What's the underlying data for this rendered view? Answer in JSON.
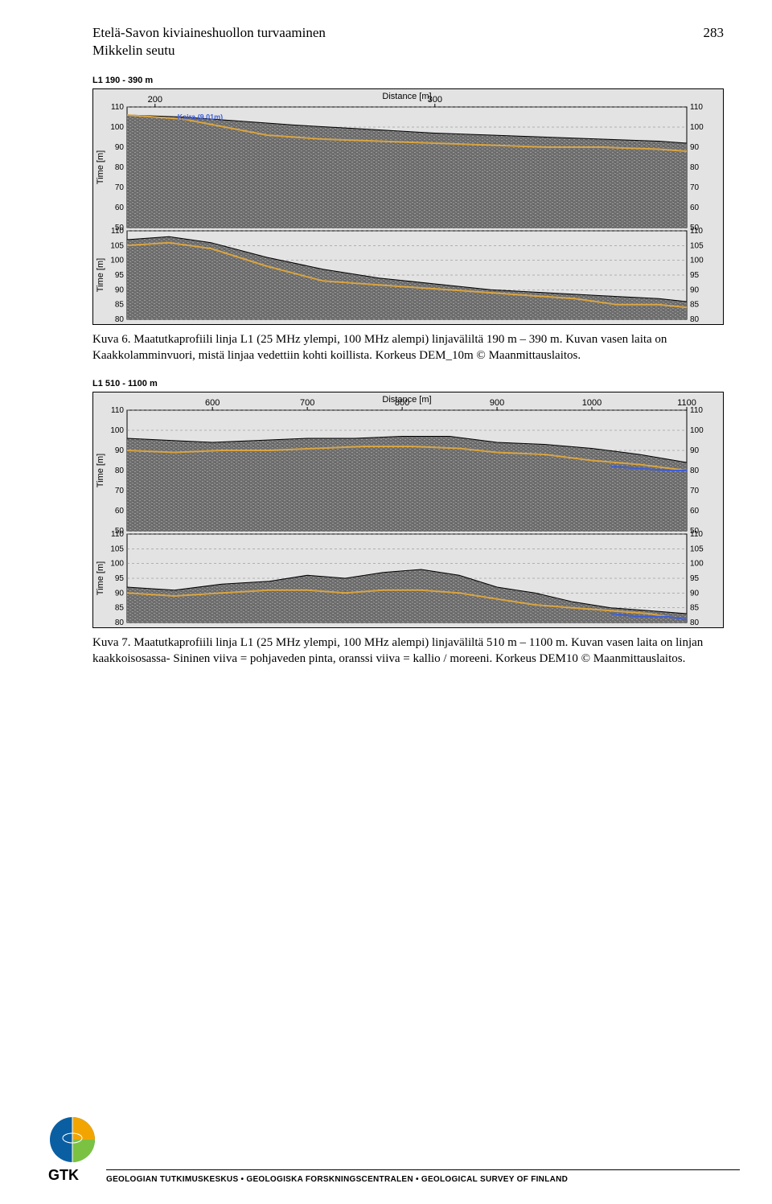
{
  "header": {
    "line1": "Etelä-Savon kiviaineshuollon turvaaminen",
    "line2": "Mikkelin seutu",
    "page_number": "283"
  },
  "profile1": {
    "label": "L1 190 - 390 m",
    "distance_label": "Distance [m]",
    "time_label_upper": "Time [m]",
    "time_label_lower": "Time [m]",
    "x_ticks": [
      200,
      300
    ],
    "x_range": [
      190,
      390
    ],
    "upper": {
      "y_ticks": [
        110,
        100,
        90,
        80,
        70,
        60,
        50
      ],
      "y_range": [
        50,
        110
      ],
      "surface": [
        [
          190,
          106
        ],
        [
          210,
          105
        ],
        [
          250,
          101
        ],
        [
          300,
          97
        ],
        [
          340,
          95
        ],
        [
          380,
          93
        ],
        [
          390,
          92
        ]
      ],
      "layer_orange": [
        [
          190,
          106
        ],
        [
          210,
          104
        ],
        [
          225,
          100
        ],
        [
          240,
          96
        ],
        [
          260,
          94
        ],
        [
          280,
          93
        ],
        [
          300,
          92
        ],
        [
          320,
          91
        ],
        [
          340,
          90
        ],
        [
          360,
          90
        ],
        [
          380,
          89
        ],
        [
          390,
          88
        ]
      ],
      "kaira_label": "Kaira (9.01m)",
      "kaira_pos": [
        208,
        103
      ]
    },
    "lower": {
      "y_ticks": [
        110,
        105,
        100,
        95,
        90,
        85,
        80
      ],
      "y_range": [
        80,
        110
      ],
      "surface": [
        [
          190,
          107
        ],
        [
          205,
          108
        ],
        [
          220,
          106
        ],
        [
          240,
          101
        ],
        [
          260,
          97
        ],
        [
          280,
          94
        ],
        [
          300,
          92
        ],
        [
          320,
          90
        ],
        [
          340,
          89
        ],
        [
          360,
          88
        ],
        [
          380,
          87
        ],
        [
          390,
          86
        ]
      ],
      "layer_orange": [
        [
          190,
          105
        ],
        [
          205,
          106
        ],
        [
          220,
          104
        ],
        [
          240,
          98
        ],
        [
          260,
          93
        ],
        [
          275,
          92
        ],
        [
          290,
          91
        ],
        [
          305,
          90
        ],
        [
          320,
          89
        ],
        [
          335,
          88
        ],
        [
          350,
          87
        ],
        [
          365,
          85
        ],
        [
          380,
          85
        ],
        [
          390,
          84
        ]
      ]
    }
  },
  "caption1": "Kuva 6. Maatutkaprofiili linja L1 (25 MHz ylempi, 100 MHz alempi) linjaväliltä 190 m – 390 m. Kuvan vasen laita on Kaakkolamminvuori, mistä linjaa vedettiin kohti koillista. Korkeus DEM_10m © Maanmittauslaitos.",
  "profile2": {
    "label": "L1 510 - 1100 m",
    "distance_label": "Distance [m]",
    "time_label_upper": "Time [m]",
    "time_label_lower": "Time [m]",
    "x_ticks": [
      600,
      700,
      800,
      900,
      1000,
      1100
    ],
    "x_range": [
      510,
      1100
    ],
    "upper": {
      "y_ticks": [
        110,
        100,
        90,
        80,
        70,
        60,
        50
      ],
      "y_range": [
        50,
        110
      ],
      "surface": [
        [
          510,
          96
        ],
        [
          600,
          94
        ],
        [
          650,
          95
        ],
        [
          700,
          96
        ],
        [
          750,
          96
        ],
        [
          800,
          97
        ],
        [
          850,
          97
        ],
        [
          900,
          94
        ],
        [
          950,
          93
        ],
        [
          1000,
          91
        ],
        [
          1050,
          88
        ],
        [
          1100,
          84
        ]
      ],
      "layer_orange": [
        [
          510,
          90
        ],
        [
          560,
          89
        ],
        [
          610,
          90
        ],
        [
          660,
          90
        ],
        [
          710,
          91
        ],
        [
          760,
          92
        ],
        [
          810,
          92
        ],
        [
          860,
          91
        ],
        [
          900,
          89
        ],
        [
          950,
          88
        ],
        [
          1000,
          85
        ],
        [
          1050,
          83
        ],
        [
          1100,
          80
        ]
      ],
      "layer_blue": [
        [
          1020,
          82
        ],
        [
          1050,
          81
        ],
        [
          1080,
          80
        ],
        [
          1100,
          80
        ]
      ]
    },
    "lower": {
      "y_ticks": [
        110,
        105,
        100,
        95,
        90,
        85,
        80
      ],
      "y_range": [
        80,
        110
      ],
      "surface": [
        [
          510,
          92
        ],
        [
          560,
          91
        ],
        [
          610,
          93
        ],
        [
          660,
          94
        ],
        [
          700,
          96
        ],
        [
          740,
          95
        ],
        [
          780,
          97
        ],
        [
          820,
          98
        ],
        [
          860,
          96
        ],
        [
          900,
          92
        ],
        [
          940,
          90
        ],
        [
          980,
          87
        ],
        [
          1020,
          85
        ],
        [
          1060,
          84
        ],
        [
          1100,
          83
        ]
      ],
      "layer_orange": [
        [
          510,
          90
        ],
        [
          560,
          89
        ],
        [
          610,
          90
        ],
        [
          660,
          91
        ],
        [
          700,
          91
        ],
        [
          740,
          90
        ],
        [
          780,
          91
        ],
        [
          820,
          91
        ],
        [
          860,
          90
        ],
        [
          900,
          88
        ],
        [
          940,
          86
        ],
        [
          980,
          85
        ],
        [
          1020,
          84
        ],
        [
          1060,
          83
        ],
        [
          1100,
          81
        ]
      ],
      "layer_blue": [
        [
          1020,
          83
        ],
        [
          1050,
          82
        ],
        [
          1080,
          82
        ],
        [
          1100,
          81
        ]
      ]
    }
  },
  "caption2": "Kuva 7. Maatutkaprofiili linja L1 (25 MHz ylempi, 100 MHz alempi) linjaväliltä 510 m – 1100 m. Kuvan vasen laita on linjan kaakkoisosassa- Sininen viiva = pohjaveden pinta, oranssi viiva = kallio / moreeni. Korkeus DEM10 © Maanmittauslaitos.",
  "footer": {
    "gtk": "GTK",
    "line": "GEOLOGIAN TUTKIMUSKESKUS  •  GEOLOGISKA FORSKNINGSCENTRALEN  •  GEOLOGICAL SURVEY OF FINLAND"
  },
  "colors": {
    "orange": "#d9a441",
    "blue": "#3f5fd6",
    "chart_bg": "#e3e3e3",
    "radar_dark": "#6e6e6e",
    "radar_light": "#9a9a9a",
    "grid": "#7c7c7c",
    "black": "#000000"
  }
}
